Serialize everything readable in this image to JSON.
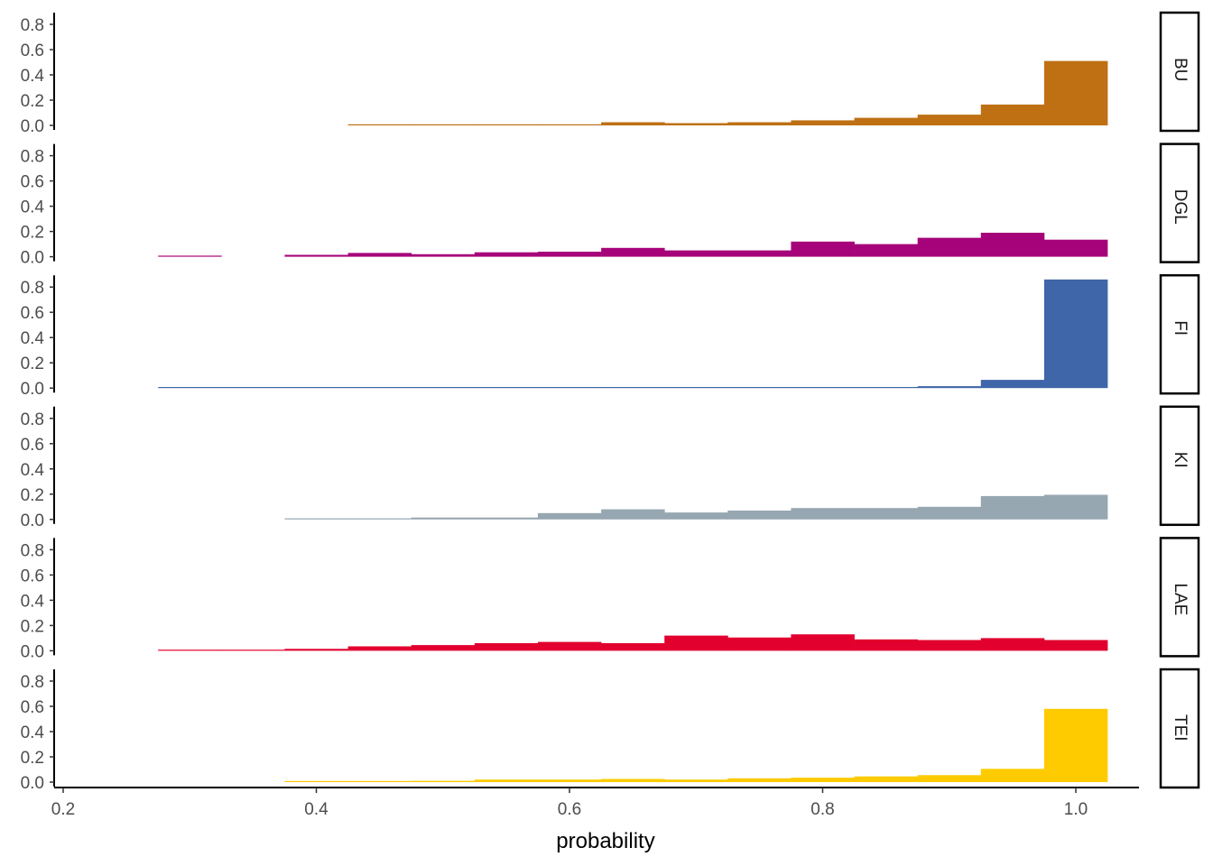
{
  "chart_data": {
    "type": "bar",
    "subtype": "faceted-histogram",
    "title": "",
    "xlabel": "probability",
    "ylabel": "",
    "xlim": [
      0.2,
      1.05
    ],
    "ylim": [
      0,
      0.85
    ],
    "x_ticks": [
      0.2,
      0.4,
      0.6,
      0.8,
      1.0
    ],
    "x_tick_labels": [
      "0.2",
      "0.4",
      "0.6",
      "0.8",
      "1.0"
    ],
    "y_ticks": [
      0.0,
      0.2,
      0.4,
      0.6,
      0.8
    ],
    "y_tick_labels": [
      "0.0",
      "0.2",
      "0.4",
      "0.6",
      "0.8"
    ],
    "grid": false,
    "legend": "none",
    "bin_width": 0.05,
    "bin_starts": [
      0.275,
      0.325,
      0.375,
      0.425,
      0.475,
      0.525,
      0.575,
      0.625,
      0.675,
      0.725,
      0.775,
      0.825,
      0.875,
      0.925,
      0.975
    ],
    "bin_centers": [
      0.3,
      0.35,
      0.4,
      0.45,
      0.5,
      0.55,
      0.6,
      0.65,
      0.7,
      0.75,
      0.8,
      0.85,
      0.9,
      0.95,
      1.0
    ],
    "series": [
      {
        "name": "BU",
        "color": "#BE7013",
        "values": [
          null,
          null,
          null,
          0.008,
          0.008,
          0.008,
          0.008,
          0.025,
          0.018,
          0.025,
          0.04,
          0.06,
          0.085,
          0.165,
          0.51
        ]
      },
      {
        "name": "DGL",
        "color": "#A6037A",
        "values": [
          0.005,
          null,
          0.015,
          0.03,
          0.02,
          0.035,
          0.04,
          0.07,
          0.05,
          0.05,
          0.12,
          0.1,
          0.15,
          0.19,
          0.135
        ]
      },
      {
        "name": "FI",
        "color": "#3E66A9",
        "values": [
          0.004,
          0.004,
          0.004,
          0.004,
          0.004,
          0.004,
          0.008,
          0.008,
          0.008,
          0.008,
          0.008,
          0.008,
          0.015,
          0.065,
          0.86
        ]
      },
      {
        "name": "KI",
        "color": "#96A7B1",
        "values": [
          null,
          null,
          0.008,
          0.008,
          0.015,
          0.015,
          0.05,
          0.08,
          0.055,
          0.07,
          0.09,
          0.09,
          0.1,
          0.185,
          0.195
        ]
      },
      {
        "name": "LAE",
        "color": "#E2002E",
        "values": [
          0.005,
          0.005,
          0.015,
          0.035,
          0.045,
          0.06,
          0.07,
          0.06,
          0.12,
          0.105,
          0.13,
          0.09,
          0.085,
          0.1,
          0.085
        ]
      },
      {
        "name": "TEI",
        "color": "#FECB00",
        "values": [
          null,
          null,
          0.005,
          0.005,
          0.01,
          0.02,
          0.02,
          0.025,
          0.02,
          0.03,
          0.035,
          0.045,
          0.055,
          0.105,
          0.58
        ]
      }
    ]
  },
  "panels": [
    {
      "label": "BU"
    },
    {
      "label": "DGL"
    },
    {
      "label": "FI"
    },
    {
      "label": "KI"
    },
    {
      "label": "LAE"
    },
    {
      "label": "TEI"
    }
  ],
  "axis": {
    "x_title": "probability"
  }
}
